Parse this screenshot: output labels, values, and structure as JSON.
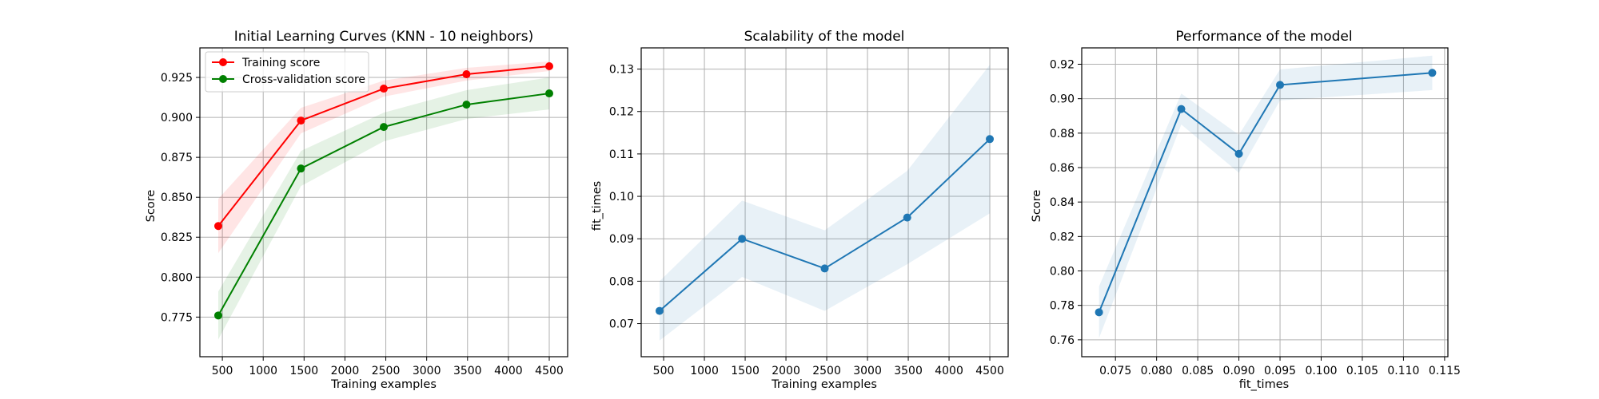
{
  "figure": {
    "background": "#ffffff"
  },
  "chart_data": [
    {
      "type": "line",
      "title": "Initial Learning Curves (KNN - 10 neighbors)",
      "xlabel": "Training examples",
      "ylabel": "Score",
      "xlim": [
        225,
        4725
      ],
      "ylim": [
        0.7502,
        0.9435
      ],
      "xticks": [
        500,
        1000,
        1500,
        2000,
        2500,
        3000,
        3500,
        4000,
        4500
      ],
      "xtick_labels": [
        "500",
        "1000",
        "1500",
        "2000",
        "2500",
        "3000",
        "3500",
        "4000",
        "4500"
      ],
      "yticks": [
        0.775,
        0.8,
        0.825,
        0.85,
        0.875,
        0.9,
        0.925
      ],
      "ytick_labels": [
        "0.775",
        "0.800",
        "0.825",
        "0.850",
        "0.875",
        "0.900",
        "0.925"
      ],
      "grid": true,
      "legend": {
        "position": "upper-left"
      },
      "series": [
        {
          "name": "Training score",
          "color": "#ff0000",
          "x": [
            450,
            1462,
            2475,
            3487,
            4500
          ],
          "y": [
            0.832,
            0.898,
            0.918,
            0.927,
            0.932
          ],
          "band_low": [
            0.815,
            0.89,
            0.913,
            0.923,
            0.929
          ],
          "band_high": [
            0.849,
            0.906,
            0.923,
            0.931,
            0.935
          ]
        },
        {
          "name": "Cross-validation score",
          "color": "#008000",
          "x": [
            450,
            1462,
            2475,
            3487,
            4500
          ],
          "y": [
            0.776,
            0.868,
            0.894,
            0.908,
            0.915
          ],
          "band_low": [
            0.761,
            0.857,
            0.885,
            0.899,
            0.905
          ],
          "band_high": [
            0.791,
            0.879,
            0.903,
            0.917,
            0.925
          ]
        }
      ]
    },
    {
      "type": "line",
      "title": "Scalability of the model",
      "xlabel": "Training examples",
      "ylabel": "fit_times",
      "xlim": [
        225,
        4725
      ],
      "ylim": [
        0.0622,
        0.135
      ],
      "xticks": [
        500,
        1000,
        1500,
        2000,
        2500,
        3000,
        3500,
        4000,
        4500
      ],
      "xtick_labels": [
        "500",
        "1000",
        "1500",
        "2000",
        "2500",
        "3000",
        "3500",
        "4000",
        "4500"
      ],
      "yticks": [
        0.07,
        0.08,
        0.09,
        0.1,
        0.11,
        0.12,
        0.13
      ],
      "ytick_labels": [
        "0.07",
        "0.08",
        "0.09",
        "0.10",
        "0.11",
        "0.12",
        "0.13"
      ],
      "grid": true,
      "series": [
        {
          "color": "#1f77b4",
          "x": [
            450,
            1462,
            2475,
            3487,
            4500
          ],
          "y": [
            0.073,
            0.09,
            0.083,
            0.095,
            0.1135
          ],
          "band_low": [
            0.066,
            0.081,
            0.073,
            0.084,
            0.096
          ],
          "band_high": [
            0.08,
            0.099,
            0.092,
            0.106,
            0.131
          ]
        }
      ]
    },
    {
      "type": "line",
      "title": "Performance of the model",
      "xlabel": "fit_times",
      "ylabel": "Score",
      "xlim": [
        0.0709,
        0.1154
      ],
      "ylim": [
        0.7502,
        0.9295
      ],
      "xticks": [
        0.075,
        0.08,
        0.085,
        0.09,
        0.095,
        0.1,
        0.105,
        0.11,
        0.115
      ],
      "xtick_labels": [
        "0.075",
        "0.080",
        "0.085",
        "0.090",
        "0.095",
        "0.100",
        "0.105",
        "0.110",
        "0.115"
      ],
      "yticks": [
        0.76,
        0.78,
        0.8,
        0.82,
        0.84,
        0.86,
        0.88,
        0.9,
        0.92
      ],
      "ytick_labels": [
        "0.76",
        "0.78",
        "0.80",
        "0.82",
        "0.84",
        "0.86",
        "0.88",
        "0.90",
        "0.92"
      ],
      "grid": true,
      "series": [
        {
          "color": "#1f77b4",
          "x": [
            0.073,
            0.083,
            0.09,
            0.095,
            0.1135
          ],
          "y": [
            0.776,
            0.894,
            0.868,
            0.908,
            0.915
          ],
          "band_low": [
            0.761,
            0.885,
            0.857,
            0.899,
            0.905
          ],
          "band_high": [
            0.791,
            0.903,
            0.879,
            0.917,
            0.925
          ]
        }
      ]
    }
  ]
}
